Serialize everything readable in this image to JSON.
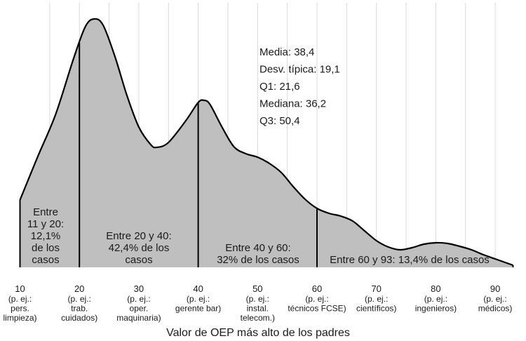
{
  "chart_data": {
    "type": "area",
    "xlabel": "Valor de OEP más alto de los padres",
    "ylabel": "",
    "xlim": [
      10,
      93
    ],
    "grid": "vertical",
    "x_ticks": [
      {
        "value": 10,
        "label": "10",
        "example": [
          "(p. ej.:",
          "pers.",
          "limpieza)"
        ]
      },
      {
        "value": 20,
        "label": "20",
        "example": [
          "(p. ej.:",
          "trab.",
          "cuidados)"
        ]
      },
      {
        "value": 30,
        "label": "30",
        "example": [
          "(p. ej.:",
          "oper.",
          "maquinaria)"
        ]
      },
      {
        "value": 40,
        "label": "40",
        "example": [
          "(p. ej.:",
          "gerente bar)"
        ]
      },
      {
        "value": 50,
        "label": "50",
        "example": [
          "(p. ej.:",
          "instal.",
          "telecom.)"
        ]
      },
      {
        "value": 60,
        "label": "60",
        "example": [
          "(p. ej.:",
          "técnicos FCSE)"
        ]
      },
      {
        "value": 70,
        "label": "70",
        "example": [
          "(p. ej.:",
          "científicos)"
        ]
      },
      {
        "value": 80,
        "label": "80",
        "example": [
          "(p. ej.:",
          "ingenieros)"
        ]
      },
      {
        "value": 90,
        "label": "90",
        "example": [
          "(p. ej.:",
          "médicos)"
        ]
      }
    ],
    "density_curve": {
      "x": [
        10,
        13,
        16,
        19,
        21,
        22.5,
        24,
        26,
        28,
        30,
        32,
        33,
        35,
        38,
        40,
        41,
        42,
        44,
        46,
        48,
        50,
        52,
        54,
        56,
        58,
        60,
        62,
        64,
        66,
        68,
        70,
        72,
        74,
        76,
        78,
        80,
        82,
        84,
        86,
        88,
        90,
        92,
        93
      ],
      "y": [
        0.96,
        1.58,
        2.18,
        2.97,
        3.43,
        3.54,
        3.45,
        3.0,
        2.45,
        2.0,
        1.75,
        1.71,
        1.78,
        2.1,
        2.35,
        2.38,
        2.32,
        2.0,
        1.72,
        1.62,
        1.57,
        1.48,
        1.35,
        1.15,
        0.97,
        0.84,
        0.77,
        0.73,
        0.66,
        0.52,
        0.38,
        0.29,
        0.25,
        0.28,
        0.33,
        0.35,
        0.34,
        0.3,
        0.25,
        0.18,
        0.12,
        0.06,
        0.03
      ]
    },
    "segment_boundaries": [
      20,
      40,
      60
    ],
    "segments": [
      {
        "range": [
          10,
          20
        ],
        "lines": [
          "Entre",
          "11 y 20:",
          "12,1%",
          "de los",
          "casos"
        ]
      },
      {
        "range": [
          20,
          40
        ],
        "lines": [
          "Entre 20 y 40:",
          "42,4% de los",
          "casos"
        ]
      },
      {
        "range": [
          40,
          60
        ],
        "lines": [
          "Entre 40 y 60:",
          "32% de los casos"
        ]
      },
      {
        "range": [
          60,
          93
        ],
        "lines": [
          "Entre 60 y 93: 13,4% de los casos"
        ]
      }
    ],
    "stats": [
      "Media: 38,4",
      "Desv. típica: 19,1",
      "Q1: 21,6",
      "Mediana: 36,2",
      "Q3: 50,4"
    ],
    "fill_color": "#bfbfbf",
    "line_color": "#000000",
    "grid_color": "#d9d9d9"
  }
}
